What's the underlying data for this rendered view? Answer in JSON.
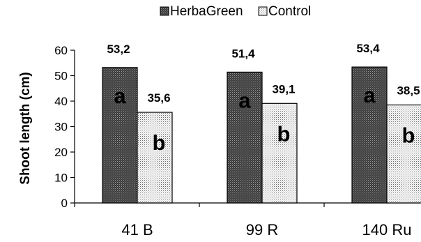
{
  "chart_data": {
    "type": "bar",
    "categories": [
      "41 B",
      "99 R",
      "140 Ru"
    ],
    "series": [
      {
        "name": "HerbaGreen",
        "values": [
          53.2,
          51.4,
          53.4
        ],
        "value_labels": [
          "53,2",
          "51,4",
          "53,4"
        ],
        "letters": [
          "a",
          "a",
          "a"
        ],
        "color": "#4d4d4d",
        "pattern": "dark-dotted"
      },
      {
        "name": "Control",
        "values": [
          35.6,
          39.1,
          38.5
        ],
        "value_labels": [
          "35,6",
          "39,1",
          "38,5"
        ],
        "letters": [
          "b",
          "b",
          "b"
        ],
        "color": "#ececec",
        "pattern": "light-dotted"
      }
    ],
    "ylabel": "Shoot length (cm)",
    "xlabel": "",
    "title": "",
    "ylim": [
      0,
      60
    ],
    "yticks": [
      0,
      10,
      20,
      30,
      40,
      50,
      60
    ],
    "grid": false,
    "legend_position": "top"
  }
}
